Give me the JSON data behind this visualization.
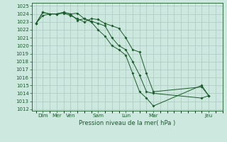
{
  "title": "Pression niveau de la mer( hPa )",
  "ylabel_ticks": [
    1012,
    1013,
    1014,
    1015,
    1016,
    1017,
    1018,
    1019,
    1020,
    1021,
    1022,
    1023,
    1024,
    1025
  ],
  "ylim": [
    1011.8,
    1025.4
  ],
  "xlim": [
    -0.3,
    13.0
  ],
  "background_color": "#cce8df",
  "grid_color": "#adc8c0",
  "line_color": "#1a5c2a",
  "xlabel_major": [
    "Dim",
    "Mer",
    "Ven",
    "Sam",
    "Lun",
    "Mar",
    "Jeu"
  ],
  "xlabel_major_pos": [
    0.5,
    1.5,
    2.5,
    4.5,
    6.5,
    8.5,
    12.5
  ],
  "line1_x": [
    0,
    0.5,
    1,
    1.5,
    2,
    2.5,
    3,
    3.5,
    4,
    4.5,
    5,
    5.5,
    6,
    6.5,
    7,
    7.5,
    8,
    8.5,
    12,
    12.5
  ],
  "line1_y": [
    1022.8,
    1023.8,
    1024.0,
    1024.0,
    1024.1,
    1023.8,
    1023.4,
    1023.0,
    1023.4,
    1023.3,
    1022.8,
    1022.5,
    1022.2,
    1021.0,
    1019.5,
    1019.2,
    1016.5,
    1014.2,
    1014.8,
    1013.7
  ],
  "line2_x": [
    0,
    0.5,
    1,
    1.5,
    2,
    2.5,
    3,
    3.5,
    4,
    4.5,
    5,
    5.5,
    6,
    6.5,
    7,
    7.5,
    8,
    8.5,
    12,
    12.5
  ],
  "line2_y": [
    1022.8,
    1024.2,
    1024.0,
    1024.0,
    1024.2,
    1024.0,
    1024.1,
    1023.4,
    1023.1,
    1022.8,
    1022.5,
    1021.0,
    1020.0,
    1019.5,
    1018.0,
    1016.3,
    1014.2,
    1014.0,
    1013.4,
    1013.7
  ],
  "line3_x": [
    0,
    0.5,
    1,
    1.5,
    2,
    2.5,
    3,
    3.5,
    4,
    4.5,
    5,
    5.5,
    6,
    6.5,
    7,
    7.5,
    8,
    8.5,
    12,
    12.5
  ],
  "line3_y": [
    1022.8,
    1024.2,
    1024.0,
    1024.0,
    1024.2,
    1024.0,
    1023.2,
    1023.4,
    1023.0,
    1022.0,
    1021.2,
    1020.0,
    1019.5,
    1018.8,
    1016.5,
    1014.2,
    1013.4,
    1012.4,
    1015.0,
    1013.7
  ]
}
